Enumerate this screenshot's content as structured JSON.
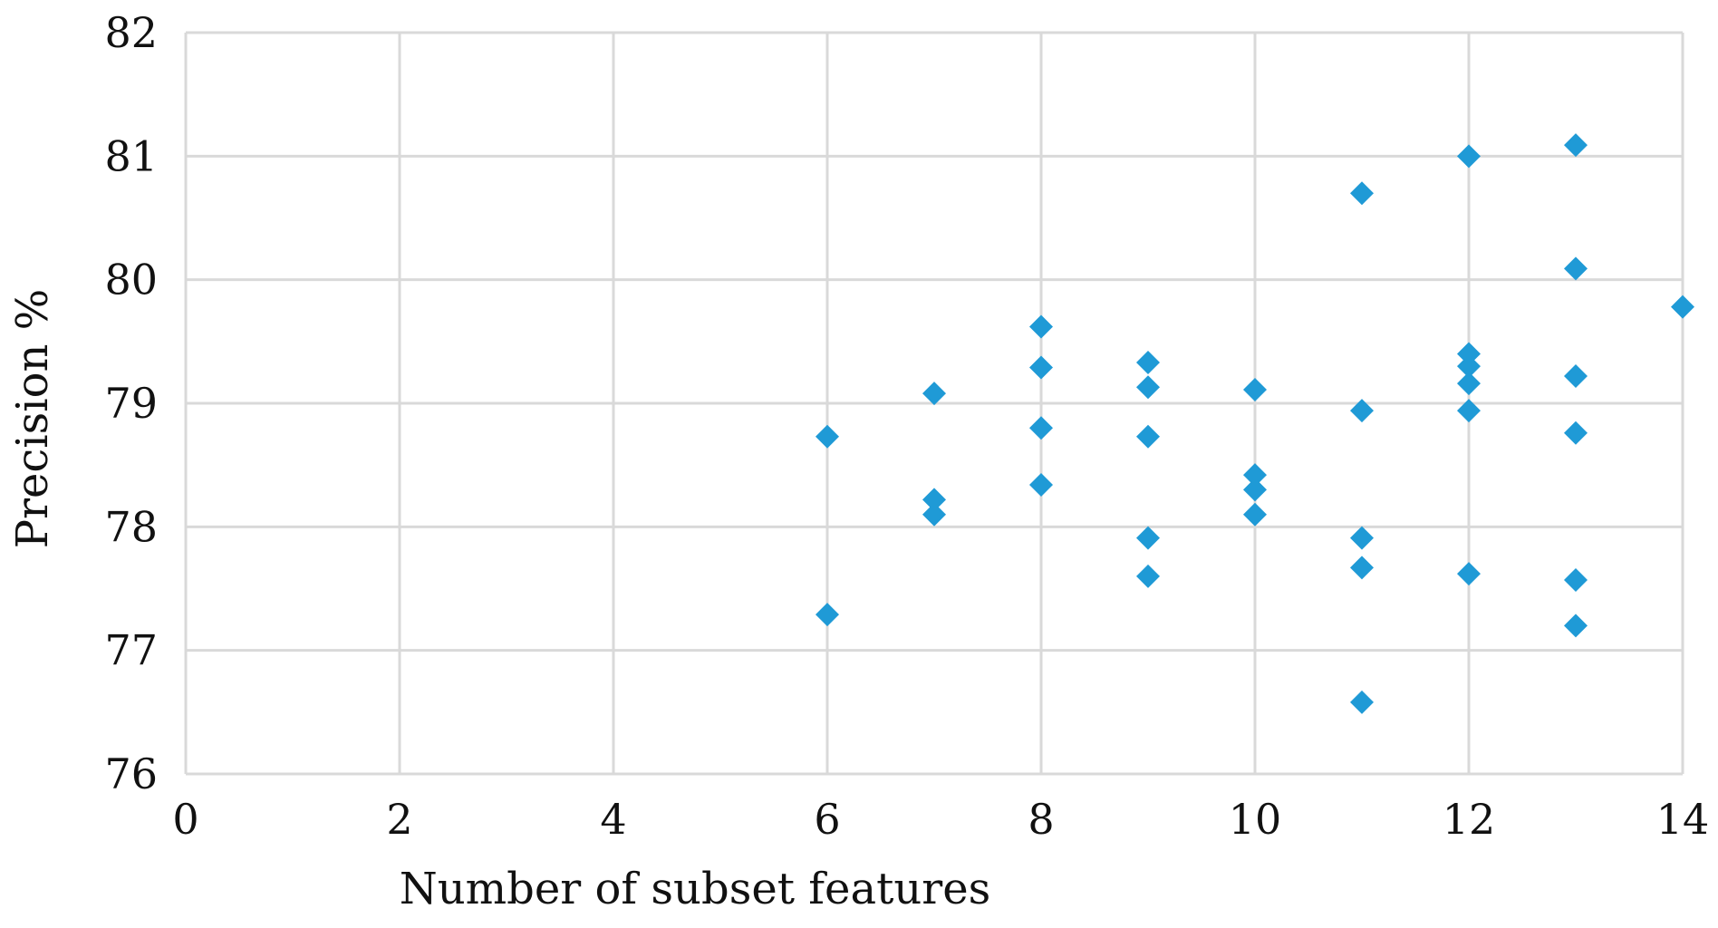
{
  "chart_data": {
    "type": "scatter",
    "xlabel": "Number of subset features",
    "ylabel": "Precision %",
    "xlim": [
      0,
      14
    ],
    "ylim": [
      76,
      82
    ],
    "xticks": [
      0,
      2,
      4,
      6,
      8,
      10,
      12,
      14
    ],
    "yticks": [
      76,
      77,
      78,
      79,
      80,
      81,
      82
    ],
    "grid": true,
    "marker": "diamond",
    "colors": {
      "marker": "#1f9ad6",
      "grid": "#d9d9d9",
      "text": "#111111"
    },
    "series": [
      {
        "points": [
          {
            "x": 6,
            "y": 78.73
          },
          {
            "x": 6,
            "y": 77.29
          },
          {
            "x": 7,
            "y": 79.08
          },
          {
            "x": 7,
            "y": 78.22
          },
          {
            "x": 7,
            "y": 78.1
          },
          {
            "x": 8,
            "y": 79.62
          },
          {
            "x": 8,
            "y": 79.29
          },
          {
            "x": 8,
            "y": 78.8
          },
          {
            "x": 8,
            "y": 78.34
          },
          {
            "x": 9,
            "y": 79.33
          },
          {
            "x": 9,
            "y": 79.13
          },
          {
            "x": 9,
            "y": 78.73
          },
          {
            "x": 9,
            "y": 77.91
          },
          {
            "x": 9,
            "y": 77.6
          },
          {
            "x": 10,
            "y": 79.11
          },
          {
            "x": 10,
            "y": 78.42
          },
          {
            "x": 10,
            "y": 78.3
          },
          {
            "x": 10,
            "y": 78.1
          },
          {
            "x": 11,
            "y": 80.7
          },
          {
            "x": 11,
            "y": 78.94
          },
          {
            "x": 11,
            "y": 77.91
          },
          {
            "x": 11,
            "y": 77.67
          },
          {
            "x": 11,
            "y": 76.58
          },
          {
            "x": 12,
            "y": 81.0
          },
          {
            "x": 12,
            "y": 79.4
          },
          {
            "x": 12,
            "y": 79.3
          },
          {
            "x": 12,
            "y": 79.16
          },
          {
            "x": 12,
            "y": 78.94
          },
          {
            "x": 12,
            "y": 77.62
          },
          {
            "x": 13,
            "y": 81.09
          },
          {
            "x": 13,
            "y": 80.09
          },
          {
            "x": 13,
            "y": 79.22
          },
          {
            "x": 13,
            "y": 78.76
          },
          {
            "x": 13,
            "y": 77.57
          },
          {
            "x": 13,
            "y": 77.2
          },
          {
            "x": 14,
            "y": 79.78
          }
        ]
      }
    ]
  }
}
